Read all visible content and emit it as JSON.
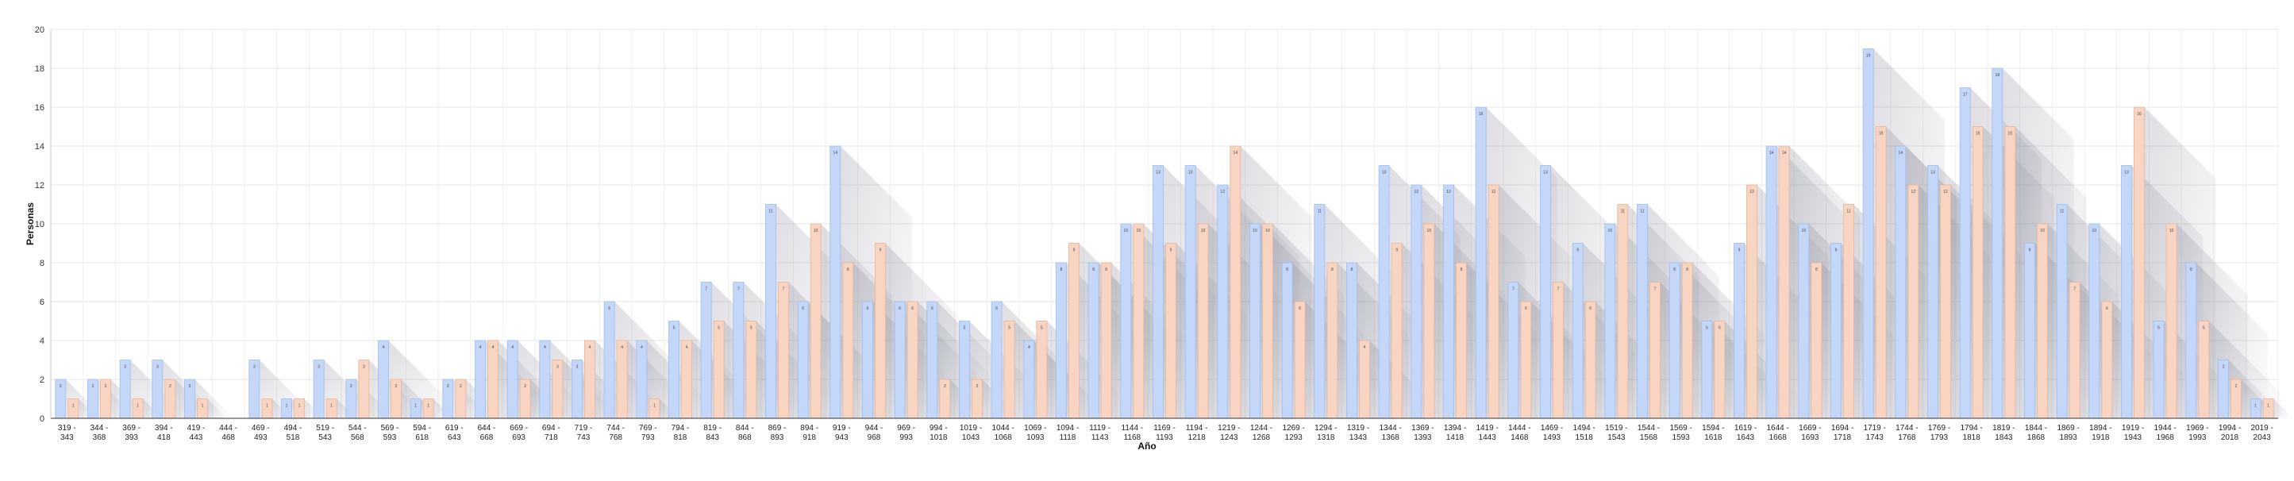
{
  "chart_data": {
    "type": "bar",
    "xlabel": "Año",
    "ylabel": "Personas",
    "ylim": [
      0,
      20
    ],
    "yticks": [
      0,
      2,
      4,
      6,
      8,
      10,
      12,
      14,
      16,
      18,
      20
    ],
    "grid": true,
    "categories": [
      "319 - 343",
      "344 - 368",
      "369 - 393",
      "394 - 418",
      "419 - 443",
      "444 - 468",
      "469 - 493",
      "494 - 518",
      "519 - 543",
      "544 - 568",
      "569 - 593",
      "594 - 618",
      "619 - 643",
      "644 - 668",
      "669 - 693",
      "694 - 718",
      "719 - 743",
      "744 - 768",
      "769 - 793",
      "794 - 818",
      "819 - 843",
      "844 - 868",
      "869 - 893",
      "894 - 918",
      "919 - 943",
      "944 - 968",
      "969 - 993",
      "994 - 1018",
      "1019 - 1043",
      "1044 - 1068",
      "1069 - 1093",
      "1094 - 1118",
      "1119 - 1143",
      "1144 - 1168",
      "1169 - 1193",
      "1194 - 1218",
      "1219 - 1243",
      "1244 - 1268",
      "1269 - 1293",
      "1294 - 1318",
      "1319 - 1343",
      "1344 - 1368",
      "1369 - 1393",
      "1394 - 1418",
      "1419 - 1443",
      "1444 - 1468",
      "1469 - 1493",
      "1494 - 1518",
      "1519 - 1543",
      "1544 - 1568",
      "1569 - 1593",
      "1594 - 1618",
      "1619 - 1643",
      "1644 - 1668",
      "1669 - 1693",
      "1694 - 1718",
      "1719 - 1743",
      "1744 - 1768",
      "1769 - 1793",
      "1794 - 1818",
      "1819 - 1843",
      "1844 - 1868",
      "1869 - 1893",
      "1894 - 1918",
      "1919 - 1943",
      "1944 - 1968",
      "1969 - 1993",
      "1994 - 2018",
      "2019 - 2043"
    ],
    "series": [
      {
        "color": "#c4d7f8",
        "values": [
          2,
          2,
          3,
          3,
          2,
          0,
          3,
          1,
          3,
          2,
          4,
          1,
          2,
          4,
          4,
          4,
          3,
          6,
          4,
          5,
          7,
          7,
          11,
          6,
          14,
          6,
          6,
          6,
          5,
          6,
          4,
          8,
          8,
          10,
          13,
          13,
          12,
          10,
          8,
          11,
          8,
          13,
          12,
          12,
          16,
          7,
          13,
          9,
          10,
          11,
          8,
          5,
          9,
          14,
          10,
          9,
          19,
          14,
          13,
          17,
          18,
          9,
          11,
          10,
          13,
          5,
          8,
          3,
          1
        ]
      },
      {
        "color": "#f8d5c2",
        "values": [
          1,
          2,
          1,
          2,
          1,
          0,
          1,
          1,
          1,
          3,
          2,
          1,
          2,
          4,
          2,
          3,
          4,
          4,
          1,
          4,
          5,
          5,
          7,
          10,
          8,
          9,
          6,
          2,
          2,
          5,
          5,
          9,
          8,
          10,
          9,
          10,
          14,
          10,
          6,
          8,
          4,
          9,
          10,
          8,
          12,
          6,
          7,
          6,
          11,
          7,
          8,
          5,
          12,
          14,
          8,
          11,
          15,
          12,
          12,
          15,
          15,
          10,
          7,
          6,
          16,
          10,
          5,
          2,
          1
        ]
      }
    ]
  }
}
